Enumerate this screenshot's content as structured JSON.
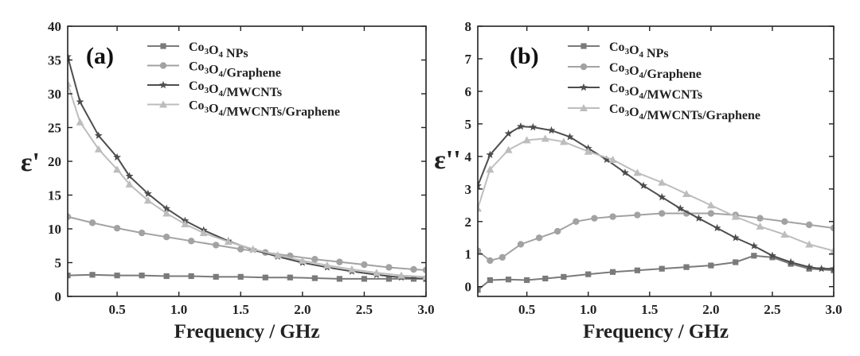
{
  "chart_data": [
    {
      "type": "line",
      "panel_label": "(a)",
      "ylabel": "ε'",
      "xlabel": "Frequency / GHz",
      "xlim": [
        0.1,
        3.0
      ],
      "ylim": [
        0,
        40
      ],
      "xticks": [
        "0.5",
        "1.0",
        "1.5",
        "2.0",
        "2.5",
        "3.0"
      ],
      "yticks": [
        "0",
        "5",
        "10",
        "15",
        "20",
        "25",
        "30",
        "35",
        "40"
      ],
      "legend_position": "top-right",
      "series": [
        {
          "name": "Co3O4 NPs",
          "marker": "square",
          "color": "#7a7a7a",
          "x": [
            0.1,
            0.3,
            0.5,
            0.7,
            0.9,
            1.1,
            1.3,
            1.5,
            1.7,
            1.9,
            2.1,
            2.3,
            2.5,
            2.7,
            2.9,
            3.0
          ],
          "y": [
            3.1,
            3.2,
            3.1,
            3.1,
            3.0,
            3.0,
            2.9,
            2.9,
            2.8,
            2.8,
            2.7,
            2.6,
            2.6,
            2.6,
            2.6,
            2.6
          ]
        },
        {
          "name": "Co3O4/Graphene",
          "marker": "circle",
          "color": "#a2a2a2",
          "x": [
            0.1,
            0.3,
            0.5,
            0.7,
            0.9,
            1.1,
            1.3,
            1.5,
            1.7,
            1.9,
            2.1,
            2.3,
            2.5,
            2.7,
            2.9,
            3.0
          ],
          "y": [
            11.8,
            10.9,
            10.1,
            9.4,
            8.8,
            8.2,
            7.6,
            7.0,
            6.5,
            6.0,
            5.5,
            5.1,
            4.7,
            4.3,
            4.0,
            3.9
          ]
        },
        {
          "name": "Co3O4/MWCNTs",
          "marker": "star",
          "color": "#4d4d4d",
          "x": [
            0.1,
            0.2,
            0.35,
            0.5,
            0.6,
            0.75,
            0.9,
            1.05,
            1.2,
            1.4,
            1.6,
            1.8,
            2.0,
            2.2,
            2.4,
            2.6,
            2.8,
            3.0
          ],
          "y": [
            35.5,
            28.8,
            23.8,
            20.6,
            17.8,
            15.2,
            13.0,
            11.2,
            9.8,
            8.2,
            6.9,
            5.9,
            5.0,
            4.3,
            3.7,
            3.2,
            2.8,
            2.6
          ]
        },
        {
          "name": "Co3O4/MWCNTs/Graphene",
          "marker": "triangle",
          "color": "#bdbdbd",
          "x": [
            0.1,
            0.2,
            0.35,
            0.5,
            0.6,
            0.75,
            0.9,
            1.05,
            1.2,
            1.4,
            1.6,
            1.8,
            2.0,
            2.2,
            2.4,
            2.6,
            2.8,
            3.0
          ],
          "y": [
            31.5,
            25.8,
            21.8,
            18.8,
            16.6,
            14.2,
            12.3,
            10.7,
            9.4,
            8.1,
            7.0,
            6.1,
            5.3,
            4.6,
            4.0,
            3.5,
            3.1,
            2.9
          ]
        }
      ]
    },
    {
      "type": "line",
      "panel_label": "(b)",
      "ylabel": "ε''",
      "xlabel": "Frequency / GHz",
      "xlim": [
        0.1,
        3.0
      ],
      "ylim": [
        -0.3,
        8
      ],
      "xticks": [
        "0.5",
        "1.0",
        "1.5",
        "2.0",
        "2.5",
        "3.0"
      ],
      "yticks": [
        "0",
        "1",
        "2",
        "3",
        "4",
        "5",
        "6",
        "7",
        "8"
      ],
      "legend_position": "top-right",
      "series": [
        {
          "name": "Co3O4 NPs",
          "marker": "square",
          "color": "#7a7a7a",
          "x": [
            0.1,
            0.2,
            0.35,
            0.5,
            0.65,
            0.8,
            1.0,
            1.2,
            1.4,
            1.6,
            1.8,
            2.0,
            2.2,
            2.35,
            2.5,
            2.65,
            2.8,
            3.0
          ],
          "y": [
            -0.1,
            0.2,
            0.22,
            0.2,
            0.25,
            0.3,
            0.38,
            0.45,
            0.5,
            0.55,
            0.6,
            0.65,
            0.75,
            0.95,
            0.9,
            0.7,
            0.55,
            0.5
          ]
        },
        {
          "name": "Co3O4/Graphene",
          "marker": "circle",
          "color": "#a2a2a2",
          "x": [
            0.1,
            0.2,
            0.3,
            0.45,
            0.6,
            0.75,
            0.9,
            1.05,
            1.2,
            1.4,
            1.6,
            1.8,
            2.0,
            2.2,
            2.4,
            2.6,
            2.8,
            3.0
          ],
          "y": [
            1.1,
            0.8,
            0.9,
            1.3,
            1.5,
            1.7,
            2.0,
            2.1,
            2.15,
            2.2,
            2.25,
            2.25,
            2.25,
            2.2,
            2.1,
            2.0,
            1.9,
            1.8
          ]
        },
        {
          "name": "Co3O4/MWCNTs",
          "marker": "star",
          "color": "#4d4d4d",
          "x": [
            0.1,
            0.2,
            0.35,
            0.45,
            0.55,
            0.7,
            0.85,
            1.0,
            1.15,
            1.3,
            1.45,
            1.6,
            1.75,
            1.9,
            2.05,
            2.2,
            2.35,
            2.5,
            2.65,
            2.8,
            2.9,
            3.0
          ],
          "y": [
            3.1,
            4.05,
            4.7,
            4.92,
            4.9,
            4.8,
            4.6,
            4.25,
            3.9,
            3.5,
            3.1,
            2.75,
            2.4,
            2.1,
            1.8,
            1.5,
            1.25,
            0.95,
            0.75,
            0.6,
            0.55,
            0.55
          ]
        },
        {
          "name": "Co3O4/MWCNTs/Graphene",
          "marker": "triangle",
          "color": "#bdbdbd",
          "x": [
            0.1,
            0.2,
            0.35,
            0.5,
            0.65,
            0.8,
            1.0,
            1.2,
            1.4,
            1.6,
            1.8,
            2.0,
            2.2,
            2.4,
            2.6,
            2.8,
            3.0
          ],
          "y": [
            2.4,
            3.6,
            4.2,
            4.5,
            4.55,
            4.45,
            4.15,
            3.9,
            3.5,
            3.2,
            2.85,
            2.5,
            2.15,
            1.85,
            1.6,
            1.3,
            1.1
          ]
        }
      ]
    }
  ]
}
